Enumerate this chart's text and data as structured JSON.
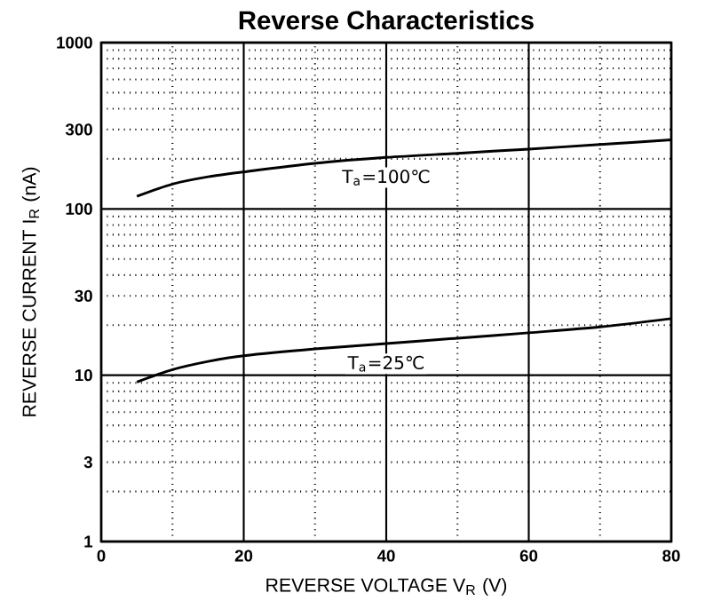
{
  "chart_data": {
    "type": "line",
    "title": "Reverse    Characteristics",
    "xlabel": "REVERSE VOLTAGE    V$_{R}$    (V)",
    "ylabel": "REVERSE CURRENT    I$_{R}$    (nA)",
    "x": [
      5,
      10,
      15,
      20,
      30,
      40,
      50,
      60,
      70,
      80
    ],
    "series": [
      {
        "color": "#000000",
        "values": [
          119,
          141,
          156,
          167,
          188,
          204,
          216,
          229,
          244,
          260
        ]
      },
      {
        "color": "#000000",
        "values": [
          9.1,
          10.8,
          12.1,
          13.1,
          14.4,
          15.5,
          16.7,
          18,
          19.5,
          21.9
        ]
      }
    ],
    "annotations": [
      "T$_{a}$=100℃",
      "T$_{a}$=25℃"
    ],
    "xlim": [
      0,
      80
    ],
    "ylim": [
      1,
      1000
    ],
    "xticks": [
      0,
      20,
      40,
      60,
      80
    ],
    "yticks": [
      1,
      3,
      10,
      30,
      100,
      300,
      1000
    ],
    "log": "y",
    "grid": true,
    "marker": "none",
    "line_style": "solid"
  }
}
